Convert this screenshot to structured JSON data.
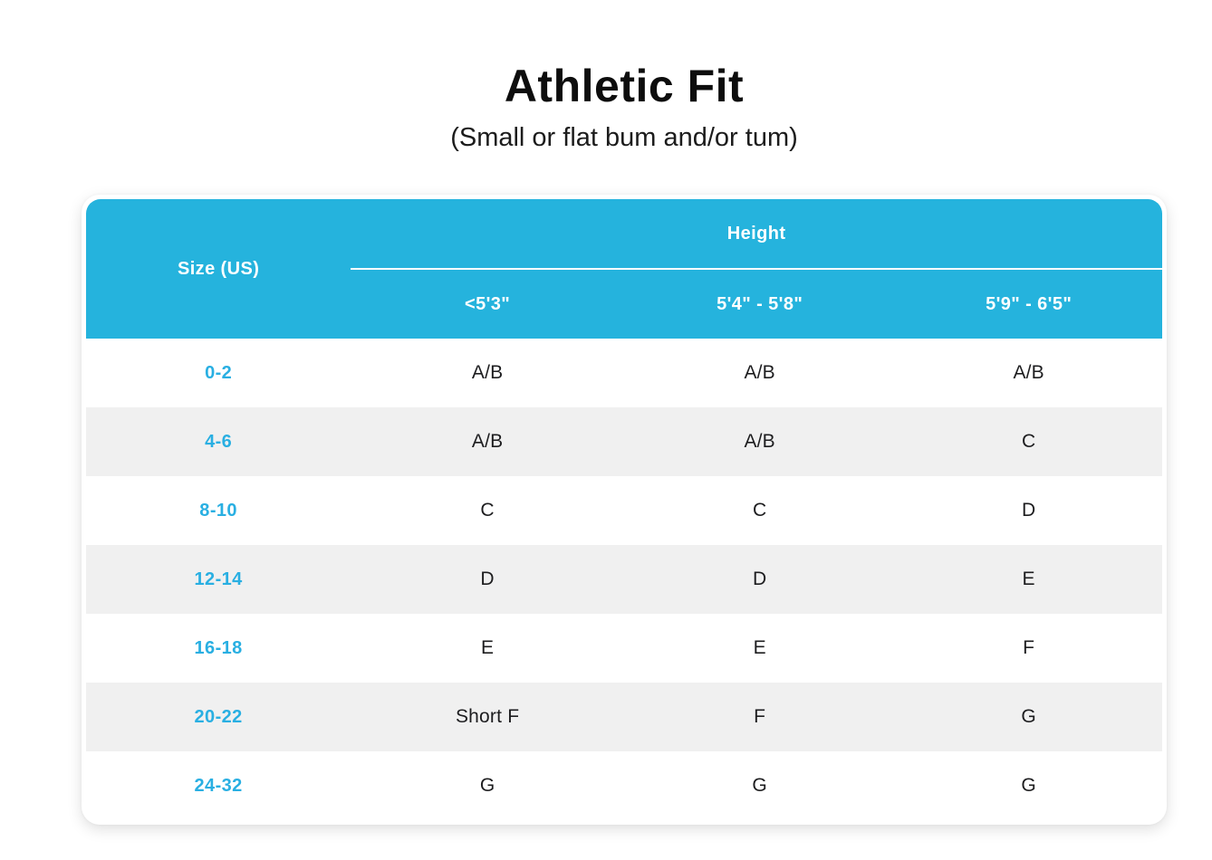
{
  "page": {
    "title": "Athletic Fit",
    "subtitle": "(Small or flat bum and/or tum)"
  },
  "table": {
    "size_header": "Size (US)",
    "height_header": "Height",
    "height_columns": [
      "<5'3\"",
      "5'4\" - 5'8\"",
      "5'9\" - 6'5\""
    ],
    "rows": [
      {
        "size": "0-2",
        "values": [
          "A/B",
          "A/B",
          "A/B"
        ]
      },
      {
        "size": "4-6",
        "values": [
          "A/B",
          "A/B",
          "C"
        ]
      },
      {
        "size": "8-10",
        "values": [
          "C",
          "C",
          "D"
        ]
      },
      {
        "size": "12-14",
        "values": [
          "D",
          "D",
          "E"
        ]
      },
      {
        "size": "16-18",
        "values": [
          "E",
          "E",
          "F"
        ]
      },
      {
        "size": "20-22",
        "values": [
          "Short F",
          "F",
          "G"
        ]
      },
      {
        "size": "24-32",
        "values": [
          "G",
          "G",
          "G"
        ]
      }
    ],
    "colors": {
      "header_bg": "#25B3DD",
      "size_text": "#29AFE2",
      "alt_row_bg": "#F0F0F0",
      "data_text": "#1D1D1F"
    }
  }
}
